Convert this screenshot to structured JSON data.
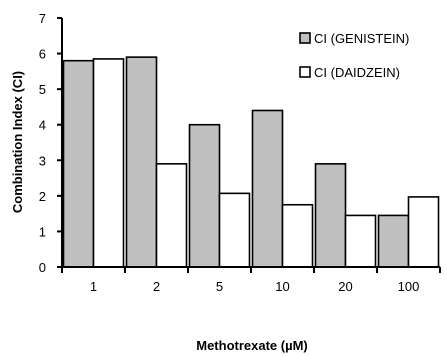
{
  "chart_data": {
    "type": "bar",
    "categories": [
      "1",
      "2",
      "5",
      "10",
      "20",
      "100"
    ],
    "series": [
      {
        "name": "CI (GENISTEIN)",
        "values": [
          5.8,
          5.9,
          4.0,
          4.4,
          2.9,
          1.45
        ],
        "color": "#c0c0c0"
      },
      {
        "name": "CI (DAIDZEIN)",
        "values": [
          5.85,
          2.9,
          2.07,
          1.75,
          1.45,
          1.97
        ],
        "color": "#ffffff"
      }
    ],
    "xlabel": "Methotrexate (µM)",
    "ylabel": "Combination Index (CI)",
    "ylim": [
      0,
      7
    ],
    "yticks": [
      "0",
      "1",
      "2",
      "3",
      "4",
      "5",
      "6",
      "7"
    ],
    "grid": false,
    "legend_position": "top-right"
  }
}
